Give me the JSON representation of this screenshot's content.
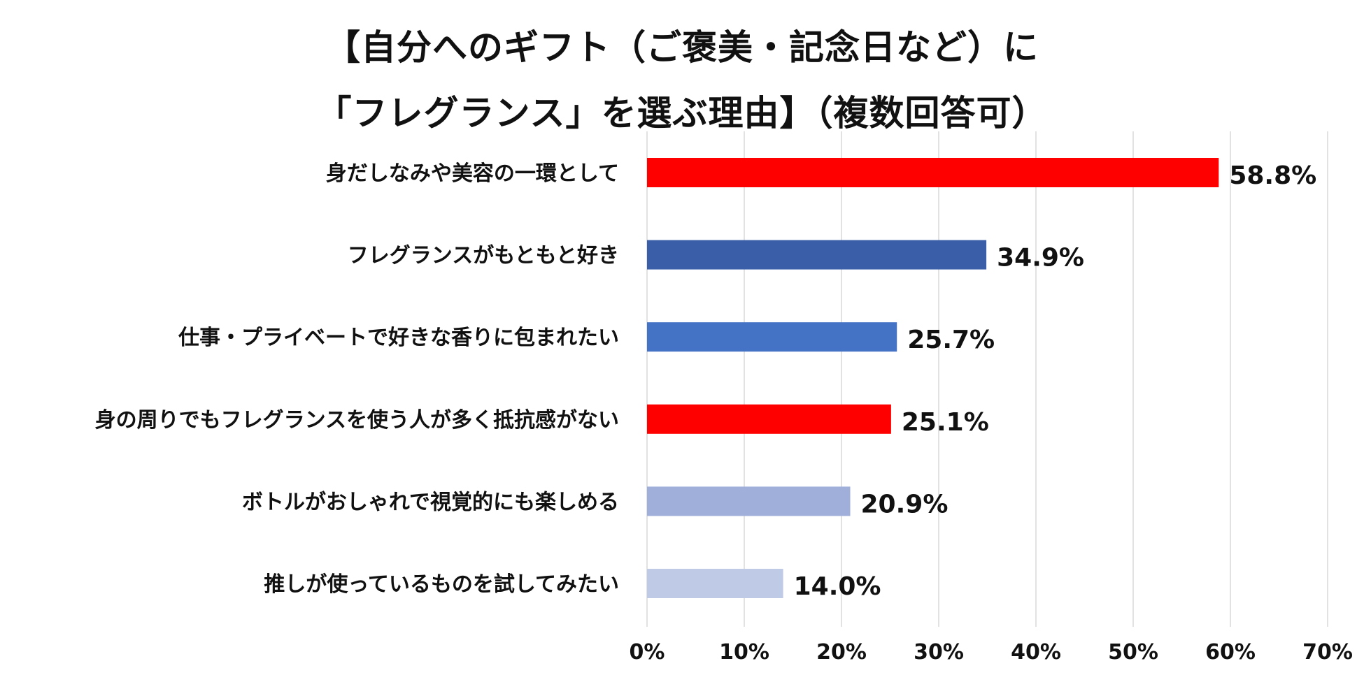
{
  "chart_data": {
    "type": "bar",
    "orientation": "horizontal",
    "title_lines": [
      "【自分へのギフト（ご褒美・記念日など）に",
      "「フレグランス」を選ぶ理由】（複数回答可）"
    ],
    "categories": [
      "身だしなみや美容の一環として",
      "フレグランスがもともと好き",
      "仕事・プライベートで好きな香りに包まれたい",
      "身の周りでもフレグランスを使う人が多く抵抗感がない",
      "ボトルがおしゃれで視覚的にも楽しめる",
      "推しが使っているものを試してみたい"
    ],
    "values": [
      58.8,
      34.9,
      25.7,
      25.1,
      20.9,
      14.0
    ],
    "value_labels": [
      "58.8%",
      "34.9%",
      "25.7%",
      "25.1%",
      "20.9%",
      "14.0%"
    ],
    "bar_colors": [
      "#ff0000",
      "#3a5ea8",
      "#4472c4",
      "#ff0000",
      "#9fafda",
      "#bfcae6"
    ],
    "xlim": [
      0,
      70
    ],
    "x_ticks": [
      0,
      10,
      20,
      30,
      40,
      50,
      60,
      70
    ],
    "x_tick_labels": [
      "0%",
      "10%",
      "20%",
      "30%",
      "40%",
      "50%",
      "60%",
      "70%"
    ],
    "grid": "vertical",
    "legend": "none"
  }
}
